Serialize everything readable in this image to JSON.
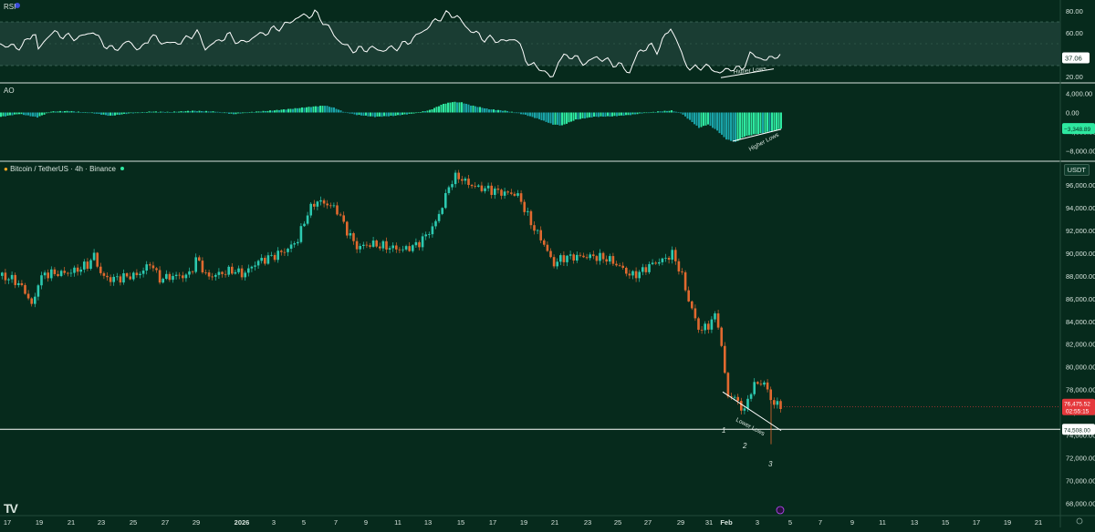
{
  "colors": {
    "background": "#062a1c",
    "pane_border": "#d7e3dc",
    "grid": "#0f3a2a",
    "up": "#2cc9b0",
    "down": "#e0692f",
    "rsi_line": "#ffffff",
    "rsi_band": "#1a3d33",
    "ao_up": "#2ee8a0",
    "ao_down": "#1aa3a8",
    "current_price_bg": "#e5383b",
    "support_line": "#ffffff"
  },
  "rsi_pane": {
    "title": "RSI",
    "value_tag": "37.06",
    "annotation": "Higher Lows",
    "y_labels": [
      "80.00",
      "60.00",
      "40.00",
      "20.00"
    ]
  },
  "ao_pane": {
    "title": "AO",
    "value_tag": "−3,348.89",
    "annotation": "Higher Lows",
    "y_labels": [
      "4,000.00",
      "0.00",
      "−4,000.00",
      "−8,000.00"
    ]
  },
  "price_pane": {
    "title": "Bitcoin / TetherUS · 4h · Binance",
    "currency_button": "USDT",
    "current_price": "76,475.52",
    "countdown": "02:55:15",
    "support_price": "74,508.00",
    "annotation": "Lower Lows",
    "pivot_labels": [
      "1",
      "2",
      "3"
    ],
    "y_labels": [
      "96,000.00",
      "94,000.00",
      "92,000.00",
      "90,000.00",
      "88,000.00",
      "86,000.00",
      "84,000.00",
      "82,000.00",
      "80,000.00",
      "78,000.00",
      "76,000.00",
      "74,000.00",
      "72,000.00",
      "70,000.00",
      "68,000.00"
    ]
  },
  "x_axis_labels": [
    "17",
    "19",
    "21",
    "23",
    "25",
    "27",
    "29",
    "2026",
    "3",
    "5",
    "7",
    "9",
    "11",
    "13",
    "15",
    "17",
    "19",
    "21",
    "23",
    "25",
    "27",
    "29",
    "31",
    "Feb",
    "3",
    "5",
    "7",
    "9",
    "11",
    "13",
    "15",
    "17",
    "19",
    "21"
  ],
  "chart_data": {
    "type": "candlestick",
    "title": "Bitcoin / TetherUS · 4h · Binance",
    "timeframe": "4h",
    "quote": "USDT",
    "ylim": [
      67000,
      98000
    ],
    "grid": false,
    "path_points": [
      [
        0,
        88000
      ],
      [
        15,
        87600
      ],
      [
        25,
        86800
      ],
      [
        35,
        85200
      ],
      [
        40,
        87400
      ],
      [
        48,
        88200
      ],
      [
        60,
        88200
      ],
      [
        75,
        88300
      ],
      [
        85,
        88600
      ],
      [
        95,
        89000
      ],
      [
        102,
        89800
      ],
      [
        110,
        88000
      ],
      [
        120,
        87700
      ],
      [
        135,
        87900
      ],
      [
        150,
        88100
      ],
      [
        165,
        89200
      ],
      [
        172,
        87700
      ],
      [
        190,
        88000
      ],
      [
        205,
        88000
      ],
      [
        215,
        89600
      ],
      [
        225,
        87900
      ],
      [
        240,
        88200
      ],
      [
        255,
        88500
      ],
      [
        265,
        88100
      ],
      [
        280,
        89200
      ],
      [
        300,
        89800
      ],
      [
        315,
        90400
      ],
      [
        325,
        91200
      ],
      [
        335,
        93400
      ],
      [
        345,
        94600
      ],
      [
        358,
        94300
      ],
      [
        368,
        93800
      ],
      [
        378,
        92100
      ],
      [
        390,
        90500
      ],
      [
        405,
        90800
      ],
      [
        420,
        90600
      ],
      [
        440,
        90300
      ],
      [
        455,
        90700
      ],
      [
        465,
        91500
      ],
      [
        475,
        92500
      ],
      [
        485,
        94500
      ],
      [
        492,
        96200
      ],
      [
        500,
        96800
      ],
      [
        510,
        96200
      ],
      [
        520,
        95800
      ],
      [
        535,
        95600
      ],
      [
        550,
        95300
      ],
      [
        565,
        95200
      ],
      [
        572,
        94200
      ],
      [
        580,
        92700
      ],
      [
        595,
        90800
      ],
      [
        605,
        89000
      ],
      [
        615,
        89600
      ],
      [
        630,
        89700
      ],
      [
        650,
        89700
      ],
      [
        665,
        89500
      ],
      [
        680,
        88700
      ],
      [
        690,
        88000
      ],
      [
        700,
        88300
      ],
      [
        712,
        89000
      ],
      [
        728,
        89500
      ],
      [
        735,
        90000
      ],
      [
        745,
        88300
      ],
      [
        752,
        86200
      ],
      [
        758,
        84800
      ],
      [
        765,
        83200
      ],
      [
        775,
        83600
      ],
      [
        780,
        84400
      ],
      [
        785,
        84300
      ],
      [
        792,
        80200
      ],
      [
        795,
        77600
      ],
      [
        805,
        77200
      ],
      [
        815,
        76000
      ],
      [
        820,
        77800
      ],
      [
        830,
        78700
      ],
      [
        838,
        78400
      ],
      [
        845,
        76800
      ],
      [
        850,
        76700
      ],
      [
        856,
        76500
      ]
    ],
    "current_price": 76475.52,
    "support_level": 74508.0,
    "pivot_lows": [
      {
        "label": "1",
        "price": 77600
      },
      {
        "label": "2",
        "price": 75600
      },
      {
        "label": "3",
        "price": 74600
      }
    ],
    "trendline_label": "Lower Lows"
  },
  "rsi_data": {
    "band": [
      30,
      70
    ],
    "points": [
      [
        0,
        50
      ],
      [
        12,
        47
      ],
      [
        25,
        48
      ],
      [
        38,
        62
      ],
      [
        42,
        44
      ],
      [
        55,
        60
      ],
      [
        68,
        58
      ],
      [
        80,
        55
      ],
      [
        95,
        58
      ],
      [
        102,
        62
      ],
      [
        110,
        52
      ],
      [
        125,
        44
      ],
      [
        140,
        52
      ],
      [
        155,
        44
      ],
      [
        165,
        58
      ],
      [
        175,
        52
      ],
      [
        190,
        50
      ],
      [
        205,
        54
      ],
      [
        215,
        62
      ],
      [
        225,
        46
      ],
      [
        238,
        52
      ],
      [
        250,
        58
      ],
      [
        265,
        50
      ],
      [
        280,
        57
      ],
      [
        300,
        63
      ],
      [
        315,
        68
      ],
      [
        325,
        74
      ],
      [
        338,
        76
      ],
      [
        345,
        78
      ],
      [
        355,
        70
      ],
      [
        368,
        56
      ],
      [
        378,
        48
      ],
      [
        390,
        44
      ],
      [
        405,
        46
      ],
      [
        420,
        44
      ],
      [
        440,
        48
      ],
      [
        455,
        56
      ],
      [
        470,
        66
      ],
      [
        482,
        74
      ],
      [
        490,
        77
      ],
      [
        500,
        76
      ],
      [
        510,
        66
      ],
      [
        520,
        60
      ],
      [
        530,
        55
      ],
      [
        540,
        54
      ],
      [
        555,
        52
      ],
      [
        565,
        56
      ],
      [
        575,
        38
      ],
      [
        582,
        30
      ],
      [
        592,
        28
      ],
      [
        600,
        22
      ],
      [
        605,
        17
      ],
      [
        612,
        35
      ],
      [
        625,
        40
      ],
      [
        640,
        32
      ],
      [
        655,
        38
      ],
      [
        668,
        33
      ],
      [
        680,
        30
      ],
      [
        690,
        24
      ],
      [
        700,
        43
      ],
      [
        712,
        48
      ],
      [
        720,
        44
      ],
      [
        735,
        65
      ],
      [
        742,
        52
      ],
      [
        750,
        34
      ],
      [
        758,
        26
      ],
      [
        770,
        30
      ],
      [
        780,
        27
      ],
      [
        790,
        23
      ],
      [
        800,
        28
      ],
      [
        812,
        26
      ],
      [
        822,
        40
      ],
      [
        832,
        38
      ],
      [
        840,
        34
      ],
      [
        848,
        40
      ],
      [
        856,
        37
      ]
    ],
    "higher_lows_line": [
      [
        790,
        19
      ],
      [
        848,
        27
      ]
    ]
  },
  "ao_data": {
    "ylim": [
      -10000,
      6000
    ],
    "points": [
      [
        0,
        -900
      ],
      [
        20,
        -300
      ],
      [
        40,
        -1000
      ],
      [
        55,
        200
      ],
      [
        75,
        300
      ],
      [
        100,
        -100
      ],
      [
        120,
        -700
      ],
      [
        140,
        -200
      ],
      [
        165,
        200
      ],
      [
        185,
        100
      ],
      [
        210,
        350
      ],
      [
        235,
        200
      ],
      [
        255,
        -350
      ],
      [
        275,
        100
      ],
      [
        300,
        450
      ],
      [
        320,
        800
      ],
      [
        340,
        1200
      ],
      [
        355,
        1450
      ],
      [
        365,
        1000
      ],
      [
        375,
        200
      ],
      [
        390,
        -500
      ],
      [
        410,
        -900
      ],
      [
        430,
        -700
      ],
      [
        450,
        -250
      ],
      [
        470,
        500
      ],
      [
        485,
        1800
      ],
      [
        495,
        2200
      ],
      [
        505,
        2100
      ],
      [
        515,
        1500
      ],
      [
        535,
        700
      ],
      [
        555,
        300
      ],
      [
        575,
        -500
      ],
      [
        590,
        -1400
      ],
      [
        605,
        -2500
      ],
      [
        615,
        -2700
      ],
      [
        630,
        -1500
      ],
      [
        650,
        -900
      ],
      [
        670,
        -800
      ],
      [
        690,
        -500
      ],
      [
        705,
        -100
      ],
      [
        720,
        200
      ],
      [
        735,
        400
      ],
      [
        745,
        -100
      ],
      [
        755,
        -1600
      ],
      [
        765,
        -3200
      ],
      [
        775,
        -2500
      ],
      [
        785,
        -3800
      ],
      [
        795,
        -5600
      ],
      [
        805,
        -6200
      ],
      [
        815,
        -5000
      ],
      [
        825,
        -4600
      ],
      [
        835,
        -4300
      ],
      [
        845,
        -3900
      ],
      [
        856,
        -3350
      ]
    ],
    "higher_lows_line": [
      [
        803,
        -6000
      ],
      [
        856,
        -3500
      ]
    ]
  }
}
